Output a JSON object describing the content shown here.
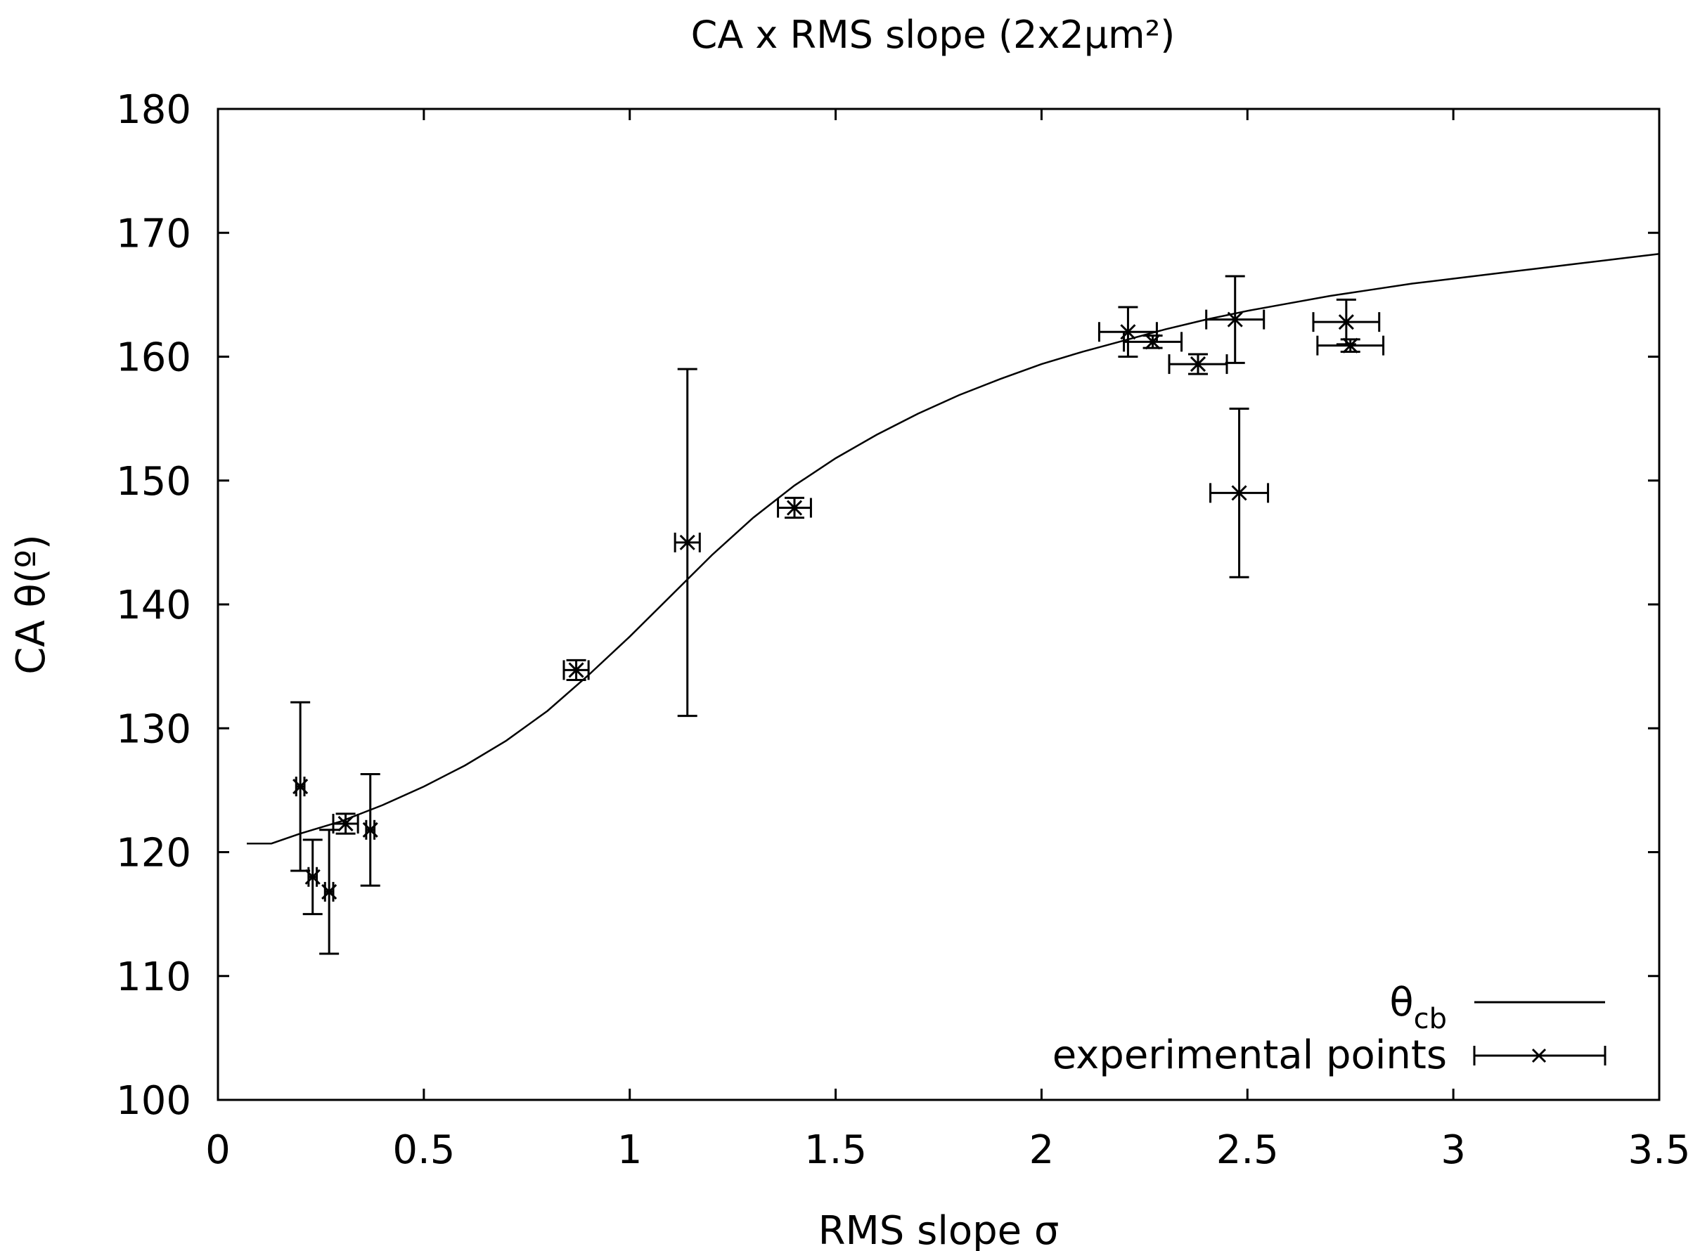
{
  "chart_data": {
    "type": "scatter",
    "title": "CA x RMS slope  (2x2μm²)",
    "xlabel": "RMS slope σ",
    "ylabel": "CA θ(º)",
    "xlim": [
      0,
      3.5
    ],
    "ylim": [
      100,
      180
    ],
    "xticks": [
      "0",
      "0.5",
      "1",
      "1.5",
      "2",
      "2.5",
      "3",
      "3.5"
    ],
    "yticks": [
      "100",
      "110",
      "120",
      "130",
      "140",
      "150",
      "160",
      "170",
      "180"
    ],
    "legend_position": "bottom-right",
    "legend": {
      "curve_label_main": "θ",
      "curve_label_sub": "cb",
      "points_label": "experimental points"
    },
    "curve": {
      "name": "θcb",
      "x": [
        0.07,
        0.13,
        0.2,
        0.3,
        0.4,
        0.5,
        0.6,
        0.7,
        0.8,
        0.9,
        1.0,
        1.1,
        1.2,
        1.3,
        1.4,
        1.5,
        1.6,
        1.7,
        1.8,
        1.9,
        2.0,
        2.1,
        2.2,
        2.3,
        2.4,
        2.5,
        2.6,
        2.7,
        2.8,
        2.9,
        3.0,
        3.1,
        3.2,
        3.3,
        3.4,
        3.5
      ],
      "y": [
        120.7,
        120.7,
        121.5,
        122.5,
        123.8,
        125.3,
        127.0,
        129.0,
        131.4,
        134.3,
        137.4,
        140.7,
        144.0,
        147.0,
        149.6,
        151.8,
        153.7,
        155.4,
        156.9,
        158.2,
        159.4,
        160.4,
        161.3,
        162.2,
        163.0,
        163.7,
        164.3,
        164.9,
        165.4,
        165.9,
        166.3,
        166.7,
        167.1,
        167.5,
        167.9,
        168.3
      ]
    },
    "series": [
      {
        "name": "experimental points",
        "points": [
          {
            "x": 0.2,
            "y": 125.3,
            "xerr": 0.01,
            "yerr": 6.8
          },
          {
            "x": 0.23,
            "y": 118.0,
            "xerr": 0.01,
            "yerr": 3.0
          },
          {
            "x": 0.27,
            "y": 116.8,
            "xerr": 0.01,
            "yerr": 5.0
          },
          {
            "x": 0.31,
            "y": 122.3,
            "xerr": 0.03,
            "yerr": 0.8
          },
          {
            "x": 0.37,
            "y": 121.8,
            "xerr": 0.01,
            "yerr": 4.5
          },
          {
            "x": 0.87,
            "y": 134.7,
            "xerr": 0.03,
            "yerr": 0.8
          },
          {
            "x": 1.14,
            "y": 145.0,
            "xerr": 0.03,
            "yerr": 14.0
          },
          {
            "x": 1.4,
            "y": 147.8,
            "xerr": 0.04,
            "yerr": 0.8
          },
          {
            "x": 2.21,
            "y": 162.0,
            "xerr": 0.07,
            "yerr": 2.0
          },
          {
            "x": 2.27,
            "y": 161.2,
            "xerr": 0.07,
            "yerr": 0.5
          },
          {
            "x": 2.38,
            "y": 159.4,
            "xerr": 0.07,
            "yerr": 0.8
          },
          {
            "x": 2.47,
            "y": 163.0,
            "xerr": 0.07,
            "yerr": 3.5
          },
          {
            "x": 2.48,
            "y": 149.0,
            "xerr": 0.07,
            "yerr": 6.8
          },
          {
            "x": 2.74,
            "y": 162.8,
            "xerr": 0.08,
            "yerr": 1.8
          },
          {
            "x": 2.75,
            "y": 160.9,
            "xerr": 0.08,
            "yerr": 0.5
          }
        ]
      }
    ]
  }
}
